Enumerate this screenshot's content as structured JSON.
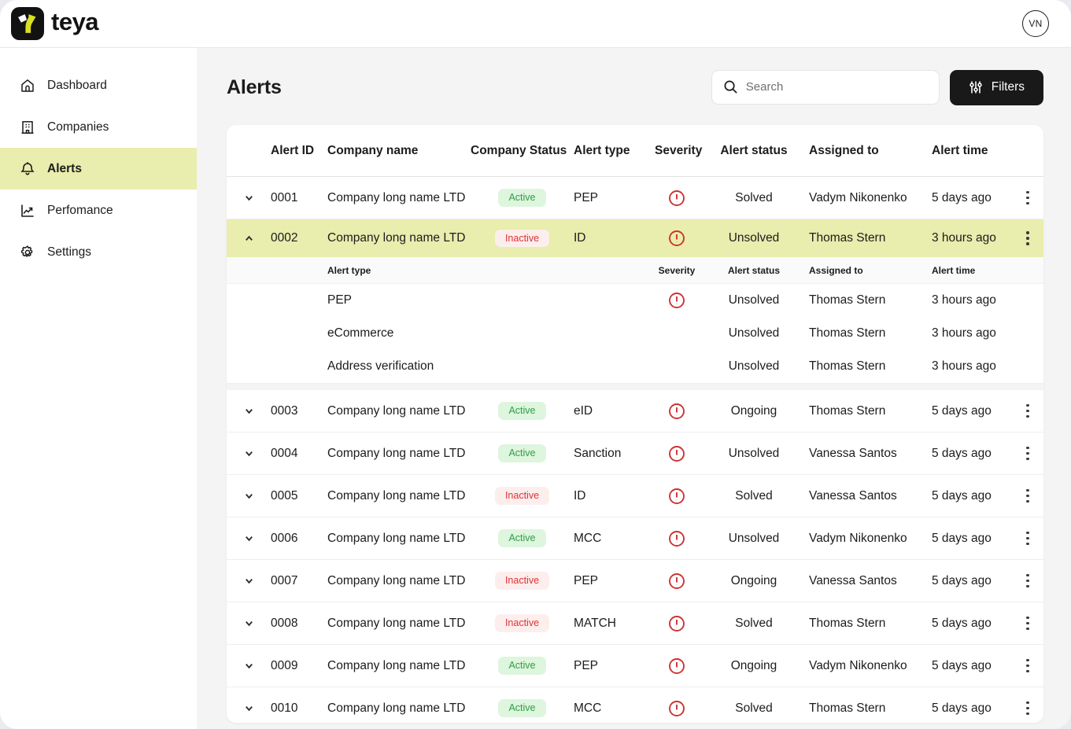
{
  "colors": {
    "highlight": "#e9edad",
    "active_badge_bg": "#def5de",
    "active_badge_text": "#2f9e44",
    "inactive_badge_bg": "#fdeeee",
    "inactive_badge_text": "#e03131",
    "severity_red": "#cc3333",
    "filters_button_bg": "#191919",
    "logo_green": "#d9e021"
  },
  "topbar": {
    "brand": "teya",
    "logo_icon": "teya-logo-icon",
    "avatar_initials": "VN"
  },
  "sidebar": {
    "items": [
      {
        "label": "Dashboard",
        "icon": "home-icon",
        "active": false
      },
      {
        "label": "Companies",
        "icon": "building-icon",
        "active": false
      },
      {
        "label": "Alerts",
        "icon": "bell-icon",
        "active": true
      },
      {
        "label": "Perfomance",
        "icon": "chart-icon",
        "active": false
      },
      {
        "label": "Settings",
        "icon": "gear-icon",
        "active": false
      }
    ]
  },
  "main": {
    "title": "Alerts",
    "search_placeholder": "Search",
    "search_icon": "search-icon",
    "filters_label": "Filters",
    "filters_icon": "sliders-icon"
  },
  "table": {
    "columns": [
      "Alert ID",
      "Company name",
      "Company Status",
      "Alert type",
      "Severity",
      "Alert status",
      "Assigned to",
      "Alert time"
    ],
    "sub_columns": [
      "Alert type",
      "Severity",
      "Alert status",
      "Assigned to",
      "Alert time"
    ],
    "severity_icon": "exclamation-circle-icon",
    "rows": [
      {
        "id": "0001",
        "company": "Company long name LTD",
        "company_status": "Active",
        "alert_type": "PEP",
        "severity": true,
        "alert_status": "Solved",
        "assigned_to": "Vadym Nikonenko",
        "alert_time": "5 days ago",
        "expanded": false,
        "highlighted": false
      },
      {
        "id": "0002",
        "company": "Company long name LTD",
        "company_status": "Inactive",
        "alert_type": "ID",
        "severity": true,
        "alert_status": "Unsolved",
        "assigned_to": "Thomas Stern",
        "alert_time": "3 hours ago",
        "expanded": true,
        "highlighted": true,
        "sub_rows": [
          {
            "alert_type": "PEP",
            "severity": true,
            "alert_status": "Unsolved",
            "assigned_to": "Thomas Stern",
            "alert_time": "3 hours ago"
          },
          {
            "alert_type": "eCommerce",
            "severity": false,
            "alert_status": "Unsolved",
            "assigned_to": "Thomas Stern",
            "alert_time": "3 hours ago"
          },
          {
            "alert_type": "Address verification",
            "severity": false,
            "alert_status": "Unsolved",
            "assigned_to": "Thomas Stern",
            "alert_time": "3 hours ago"
          }
        ]
      },
      {
        "id": "0003",
        "company": "Company long name LTD",
        "company_status": "Active",
        "alert_type": "eID",
        "severity": true,
        "alert_status": "Ongoing",
        "assigned_to": "Thomas Stern",
        "alert_time": "5 days ago",
        "expanded": false,
        "highlighted": false
      },
      {
        "id": "0004",
        "company": "Company long name LTD",
        "company_status": "Active",
        "alert_type": "Sanction",
        "severity": true,
        "alert_status": "Unsolved",
        "assigned_to": "Vanessa Santos",
        "alert_time": "5 days ago",
        "expanded": false,
        "highlighted": false
      },
      {
        "id": "0005",
        "company": "Company long name LTD",
        "company_status": "Inactive",
        "alert_type": "ID",
        "severity": true,
        "alert_status": "Solved",
        "assigned_to": "Vanessa Santos",
        "alert_time": "5 days ago",
        "expanded": false,
        "highlighted": false
      },
      {
        "id": "0006",
        "company": "Company long name LTD",
        "company_status": "Active",
        "alert_type": "MCC",
        "severity": true,
        "alert_status": "Unsolved",
        "assigned_to": "Vadym Nikonenko",
        "alert_time": "5 days ago",
        "expanded": false,
        "highlighted": false
      },
      {
        "id": "0007",
        "company": "Company long name LTD",
        "company_status": "Inactive",
        "alert_type": "PEP",
        "severity": true,
        "alert_status": "Ongoing",
        "assigned_to": "Vanessa Santos",
        "alert_time": "5 days ago",
        "expanded": false,
        "highlighted": false
      },
      {
        "id": "0008",
        "company": "Company long name LTD",
        "company_status": "Inactive",
        "alert_type": "MATCH",
        "severity": true,
        "alert_status": "Solved",
        "assigned_to": "Thomas Stern",
        "alert_time": "5 days ago",
        "expanded": false,
        "highlighted": false
      },
      {
        "id": "0009",
        "company": "Company long name LTD",
        "company_status": "Active",
        "alert_type": "PEP",
        "severity": true,
        "alert_status": "Ongoing",
        "assigned_to": "Vadym Nikonenko",
        "alert_time": "5 days ago",
        "expanded": false,
        "highlighted": false
      },
      {
        "id": "0010",
        "company": "Company long name LTD",
        "company_status": "Active",
        "alert_type": "MCC",
        "severity": true,
        "alert_status": "Solved",
        "assigned_to": "Thomas Stern",
        "alert_time": "5 days ago",
        "expanded": false,
        "highlighted": false
      }
    ]
  }
}
